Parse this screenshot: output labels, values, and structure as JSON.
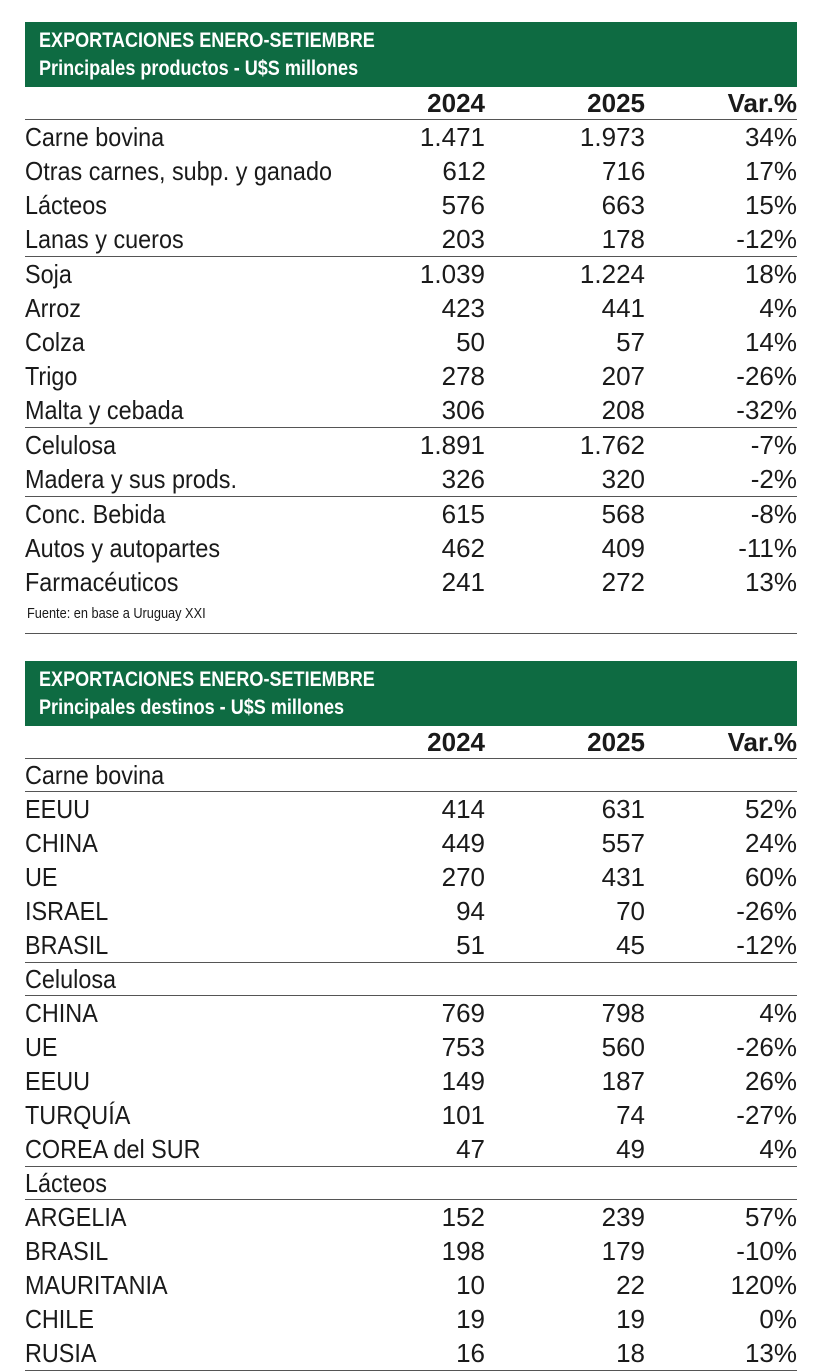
{
  "products": {
    "title1": "EXPORTACIONES ENERO-SETIEMBRE",
    "title2": "Principales productos - U$S millones",
    "headers": [
      "",
      "2024",
      "2025",
      "Var.%"
    ],
    "rows": [
      {
        "label": "Carne bovina",
        "v2024": "1.471",
        "v2025": "1.973",
        "var": "34%",
        "sep": false
      },
      {
        "label": "Otras carnes, subp. y ganado",
        "v2024": "612",
        "v2025": "716",
        "var": "17%",
        "sep": false
      },
      {
        "label": "Lácteos",
        "v2024": "576",
        "v2025": "663",
        "var": "15%",
        "sep": false
      },
      {
        "label": "Lanas y cueros",
        "v2024": "203",
        "v2025": "178",
        "var": "-12%",
        "sep": false
      },
      {
        "label": "Soja",
        "v2024": "1.039",
        "v2025": "1.224",
        "var": "18%",
        "sep": true
      },
      {
        "label": "Arroz",
        "v2024": "423",
        "v2025": "441",
        "var": "4%",
        "sep": false
      },
      {
        "label": "Colza",
        "v2024": "50",
        "v2025": "57",
        "var": "14%",
        "sep": false
      },
      {
        "label": "Trigo",
        "v2024": "278",
        "v2025": "207",
        "var": "-26%",
        "sep": false
      },
      {
        "label": "Malta y cebada",
        "v2024": "306",
        "v2025": "208",
        "var": "-32%",
        "sep": false
      },
      {
        "label": "Celulosa",
        "v2024": "1.891",
        "v2025": "1.762",
        "var": "-7%",
        "sep": true
      },
      {
        "label": "Madera y sus prods.",
        "v2024": "326",
        "v2025": "320",
        "var": "-2%",
        "sep": false
      },
      {
        "label": "Conc. Bebida",
        "v2024": "615",
        "v2025": "568",
        "var": "-8%",
        "sep": true
      },
      {
        "label": "Autos y autopartes",
        "v2024": "462",
        "v2025": "409",
        "var": "-11%",
        "sep": false
      },
      {
        "label": "Farmacéuticos",
        "v2024": "241",
        "v2025": "272",
        "var": "13%",
        "sep": false
      }
    ],
    "source": "Fuente: en base a Uruguay XXI"
  },
  "destinations": {
    "title1": "EXPORTACIONES ENERO-SETIEMBRE",
    "title2": "Principales destinos - U$S millones",
    "headers": [
      "",
      "2024",
      "2025",
      "Var.%"
    ],
    "groups": [
      {
        "name": "Carne bovina",
        "rows": [
          {
            "label": "EEUU",
            "v2024": "414",
            "v2025": "631",
            "var": "52%"
          },
          {
            "label": "CHINA",
            "v2024": "449",
            "v2025": "557",
            "var": "24%"
          },
          {
            "label": "UE",
            "v2024": "270",
            "v2025": "431",
            "var": "60%"
          },
          {
            "label": "ISRAEL",
            "v2024": "94",
            "v2025": "70",
            "var": "-26%"
          },
          {
            "label": "BRASIL",
            "v2024": "51",
            "v2025": "45",
            "var": "-12%"
          }
        ]
      },
      {
        "name": "Celulosa",
        "rows": [
          {
            "label": "CHINA",
            "v2024": "769",
            "v2025": "798",
            "var": "4%"
          },
          {
            "label": "UE",
            "v2024": "753",
            "v2025": "560",
            "var": "-26%"
          },
          {
            "label": "EEUU",
            "v2024": "149",
            "v2025": "187",
            "var": "26%"
          },
          {
            "label": "TURQUÍA",
            "v2024": "101",
            "v2025": "74",
            "var": "-27%"
          },
          {
            "label": "COREA del SUR",
            "v2024": "47",
            "v2025": "49",
            "var": "4%"
          }
        ]
      },
      {
        "name": "Lácteos",
        "rows": [
          {
            "label": "ARGELIA",
            "v2024": "152",
            "v2025": "239",
            "var": "57%"
          },
          {
            "label": "BRASIL",
            "v2024": "198",
            "v2025": "179",
            "var": "-10%"
          },
          {
            "label": "MAURITANIA",
            "v2024": "10",
            "v2025": "22",
            "var": "120%"
          },
          {
            "label": "CHILE",
            "v2024": "19",
            "v2025": "19",
            "var": "0%"
          },
          {
            "label": "RUSIA",
            "v2024": "16",
            "v2025": "18",
            "var": "13%"
          }
        ]
      }
    ]
  }
}
